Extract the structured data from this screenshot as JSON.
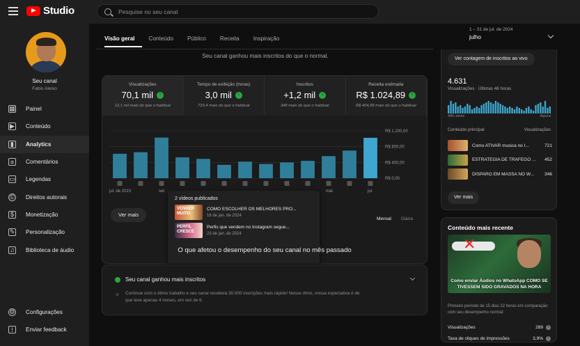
{
  "app": {
    "logo_text": "Studio",
    "brand_color": "#ff0000"
  },
  "search": {
    "placeholder": "Pesquise no seu canal"
  },
  "channel": {
    "title": "Seu canal",
    "name": "Fabio Aleixo"
  },
  "sidebar": {
    "items": [
      {
        "label": "Painel",
        "icon": "dashboard-icon"
      },
      {
        "label": "Conteúdo",
        "icon": "content-icon"
      },
      {
        "label": "Analytics",
        "icon": "analytics-icon",
        "active": true
      },
      {
        "label": "Comentários",
        "icon": "comments-icon"
      },
      {
        "label": "Legendas",
        "icon": "subtitles-icon"
      },
      {
        "label": "Direitos autorais",
        "icon": "copyright-icon"
      },
      {
        "label": "Monetização",
        "icon": "monetization-icon"
      },
      {
        "label": "Personalização",
        "icon": "customization-icon"
      },
      {
        "label": "Biblioteca de áudio",
        "icon": "audio-library-icon"
      }
    ],
    "bottom": [
      {
        "label": "Configurações",
        "icon": "gear-icon"
      },
      {
        "label": "Enviar feedback",
        "icon": "feedback-icon"
      }
    ]
  },
  "tabs": [
    "Visão geral",
    "Conteúdo",
    "Público",
    "Receita",
    "Inspiração"
  ],
  "period": {
    "range": "1 – 31 de jul. de 2024",
    "label": "julho"
  },
  "banner": "Seu canal ganhou mais inscritos do que o normal.",
  "metrics": [
    {
      "label": "Visualizações",
      "value": "70,1 mil",
      "sub": "12,1 mil mais do que o habitual"
    },
    {
      "label": "Tempo de exibição (horas)",
      "value": "3,0 mil",
      "sub": "729,4 mais do que o habitual"
    },
    {
      "label": "Inscritos",
      "value": "+1,2 mil",
      "sub": "348 mais do que o habitual"
    },
    {
      "label": "Receita estimada",
      "value": "R$ 1.024,89",
      "sub": "R$ 404,89 mais do que o habitual"
    }
  ],
  "chart_data": {
    "type": "bar",
    "title": "",
    "ylabel": "Receita estimada",
    "y_ticks": [
      "R$ 1.200,00",
      "R$ 800,00",
      "R$ 400,00",
      "R$ 0,00"
    ],
    "ylim": [
      0,
      1200
    ],
    "x_labels": [
      {
        "index": 0,
        "label": "jul. de 2023"
      },
      {
        "index": 2,
        "label": "set."
      },
      {
        "index": 10,
        "label": "mai."
      },
      {
        "index": 12,
        "label": "jul."
      }
    ],
    "values": [
      620,
      660,
      1030,
      530,
      490,
      340,
      420,
      360,
      400,
      440,
      560,
      700,
      1024.89
    ],
    "highlight_index": 12,
    "bar_color": "#2f7f9a",
    "highlight_color": "#3ea6cf",
    "grid": true
  },
  "chart_buttons": {
    "more": "Ver mais",
    "monthly": "Mensal",
    "daily": "Diária"
  },
  "popup": {
    "title": "2 vídeos publicados",
    "videos": [
      {
        "title": "COMO ESCOLHER OS MELHORES PRO...",
        "date": "16 de jan. de 2024",
        "thumb_text": "VENDER MUITO"
      },
      {
        "title": "Perfis que vendem no Instagram segue...",
        "date": "23 de jan. de 2024",
        "thumb_text": "PERFIL CRESCE"
      }
    ]
  },
  "question_title": "O que afetou o desempenho do seu canal no mês passado",
  "insight": {
    "title": "Seu canal ganhou mais inscritos",
    "body": "Continue com o ótimo trabalho e seu canal receberá 30.000 inscrições mais rápido! Nesse ritmo, nossa expectativa é de que leve apenas 4 meses, em vez de 6."
  },
  "realtime": {
    "button": "Ver contagem de inscritos ao vivo",
    "count": "4.631",
    "count_label": "Visualizações · Últimas 48 horas",
    "spark_values": [
      6,
      9,
      7,
      8,
      5,
      6,
      4,
      5,
      7,
      6,
      3,
      4,
      5,
      4,
      6,
      7,
      8,
      9,
      8,
      7,
      9,
      8,
      7,
      6,
      5,
      4,
      5,
      4,
      3,
      5,
      4,
      3,
      2,
      4,
      5,
      3,
      2,
      6,
      7,
      8,
      5,
      9,
      4,
      5
    ],
    "left_label": "48h atrás",
    "right_label": "Agora",
    "top_content_label": "Conteúdo principal",
    "views_label": "Visualizações",
    "top_content": [
      {
        "title": "Como ATIVAR musica no I...",
        "views": "721"
      },
      {
        "title": "ESTRATÉGIA DE TRÁFEGO ...",
        "views": "452"
      },
      {
        "title": "DISPARO EM MASSA NO W...",
        "views": "346"
      }
    ],
    "more": "Ver mais"
  },
  "recent": {
    "title": "Conteúdo mais recente",
    "thumb_caption": "Como enviar Áudios no WhatsApp COMO SE TIVESSEM SIDO GRAVADOS NA HORA",
    "desc": "Primeiro período de 15 dias 22 horas em comparação com seu desempenho normal:",
    "stats": [
      {
        "label": "Visualizações",
        "value": "289"
      },
      {
        "label": "Taxa de cliques de impressões",
        "value": "3,9%"
      }
    ]
  }
}
